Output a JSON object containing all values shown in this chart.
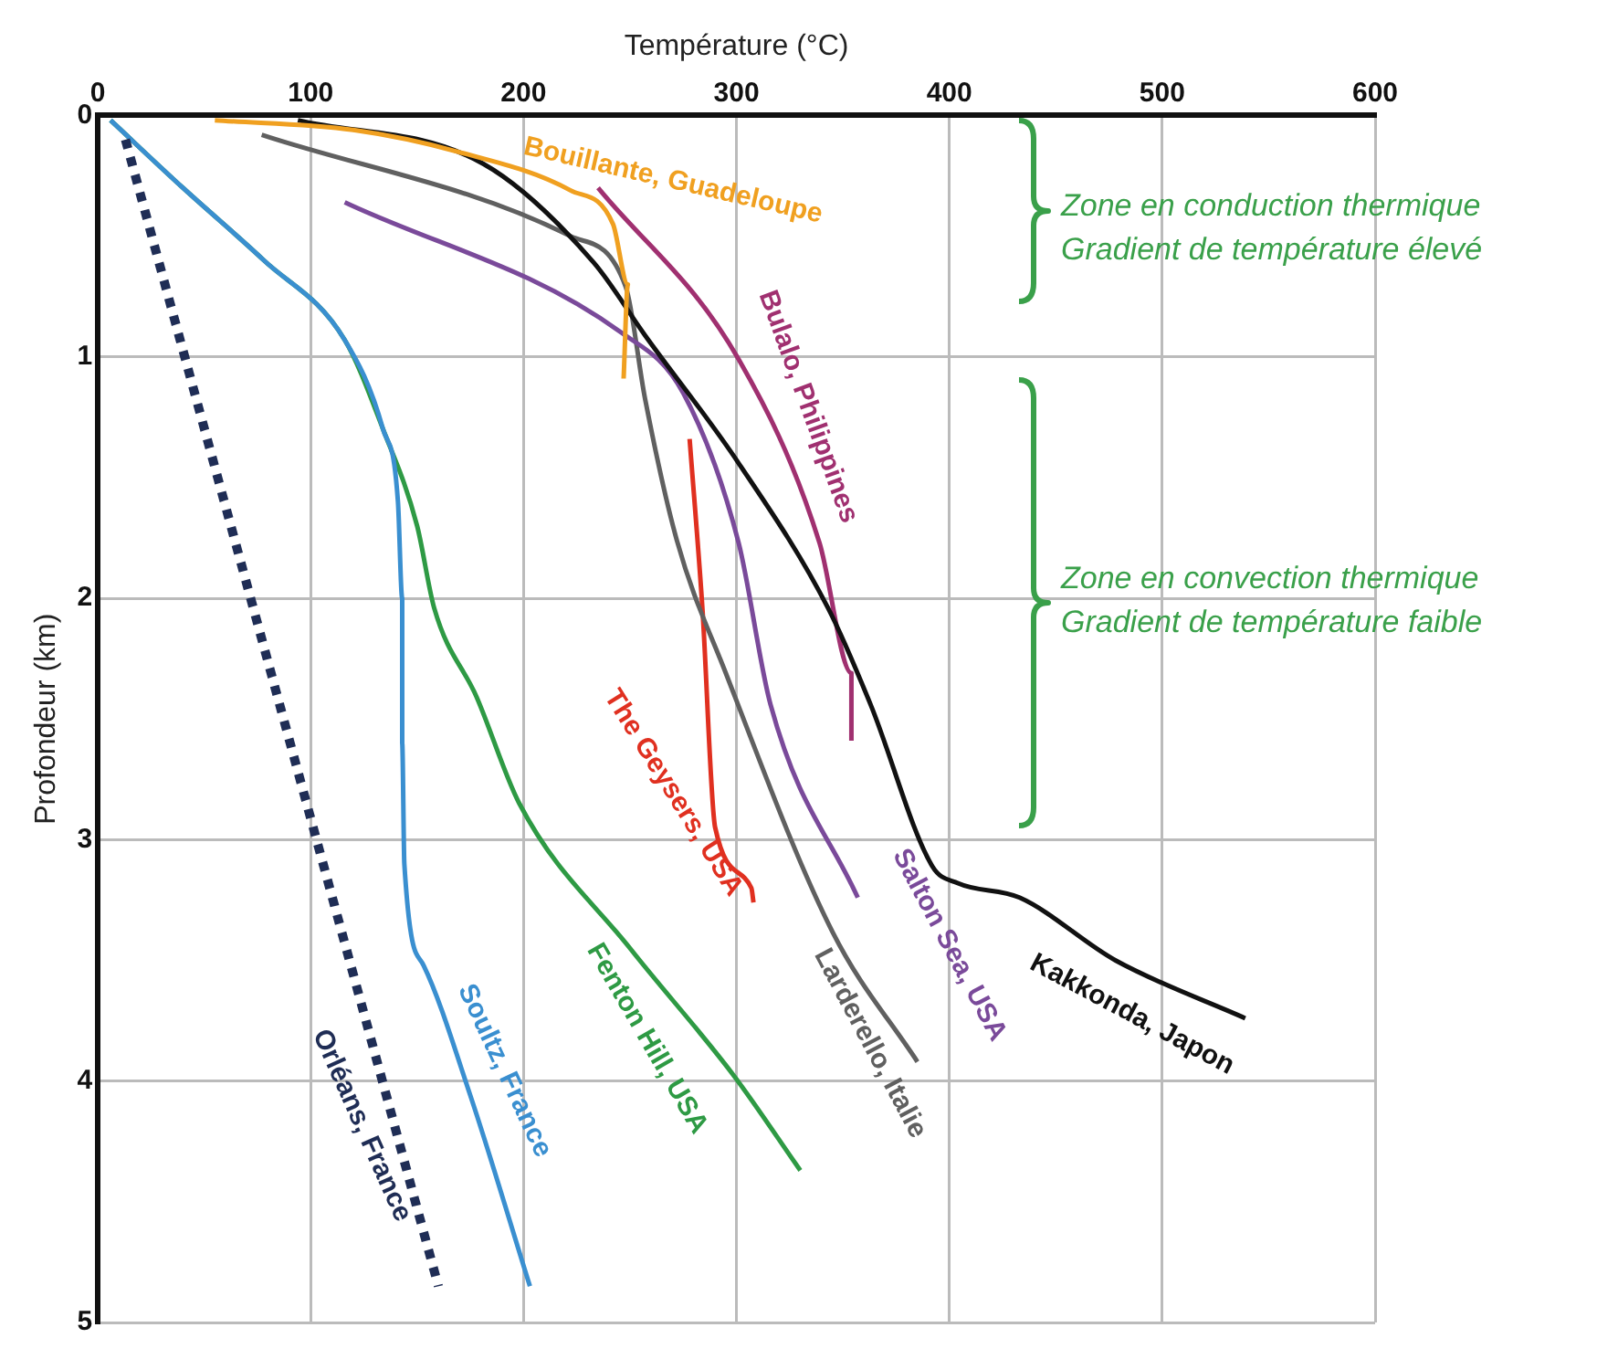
{
  "chart_data": {
    "type": "line",
    "xlabel": "Température (°C)",
    "ylabel": "Profondeur (km)",
    "xlim": [
      0,
      600
    ],
    "ylim": [
      5,
      0
    ],
    "xticks": [
      0,
      100,
      200,
      300,
      400,
      500,
      600
    ],
    "yticks": [
      0,
      1,
      2,
      3,
      4,
      5
    ],
    "grid": true,
    "legend": false,
    "marker": "none",
    "series": [
      {
        "name": "Orléans, France",
        "color": "#1f2d55",
        "line_style": "dotted",
        "x": [
          13,
          160
        ],
        "values": [
          0.1,
          4.85
        ]
      },
      {
        "name": "Soultz, France",
        "color": "#3a8fd0",
        "x": [
          6,
          40,
          78,
          116,
          134,
          141,
          143,
          143,
          144,
          153,
          175,
          203
        ],
        "values": [
          0.02,
          0.3,
          0.6,
          0.93,
          1.3,
          1.6,
          2.0,
          2.6,
          3.1,
          3.52,
          4.06,
          4.85
        ]
      },
      {
        "name": "Fenton Hill, USA",
        "color": "#2e9a44",
        "x": [
          6,
          40,
          78,
          116,
          134,
          150,
          158,
          178,
          198,
          250,
          299,
          330
        ],
        "values": [
          0.02,
          0.3,
          0.6,
          0.93,
          1.3,
          1.7,
          2.04,
          2.41,
          2.85,
          3.45,
          3.98,
          4.37
        ]
      },
      {
        "name": "Bouillante, Guadeloupe",
        "color": "#f0a020",
        "x": [
          55,
          120,
          169,
          222,
          242,
          249,
          247
        ],
        "values": [
          0.02,
          0.06,
          0.15,
          0.31,
          0.45,
          0.7,
          1.09
        ]
      },
      {
        "name": "Kakkonda, Japon",
        "color": "#111111",
        "x": [
          94,
          181,
          233,
          257,
          301,
          343,
          363,
          392,
          404,
          433,
          478,
          539
        ],
        "values": [
          0.02,
          0.2,
          0.61,
          0.91,
          1.44,
          2.04,
          2.44,
          3.11,
          3.18,
          3.24,
          3.5,
          3.74
        ]
      },
      {
        "name": "Bulalo, Philippines",
        "color": "#a03070",
        "x": [
          235,
          301,
          339,
          354,
          354
        ],
        "values": [
          0.3,
          1.01,
          1.77,
          2.31,
          2.59
        ]
      },
      {
        "name": "Salton Sea, USA",
        "color": "#7a4a9a",
        "x": [
          116,
          246,
          275,
          301,
          316,
          357
        ],
        "values": [
          0.36,
          0.9,
          1.15,
          1.77,
          2.44,
          3.24
        ]
      },
      {
        "name": "Larderello, Italie",
        "color": "#606060",
        "x": [
          77,
          222,
          248,
          257,
          272,
          295,
          345,
          385
        ],
        "values": [
          0.08,
          0.5,
          0.71,
          1.17,
          1.76,
          2.31,
          3.38,
          3.92
        ]
      },
      {
        "name": "The Geysers, USA",
        "color": "#e03020",
        "x": [
          278,
          284,
          290,
          307,
          308
        ],
        "values": [
          1.34,
          2.04,
          2.95,
          3.2,
          3.26
        ]
      }
    ],
    "annotations": [
      "Zone en conduction thermique",
      "Gradient de température élevé",
      "Zone en convection thermique",
      "Gradient de température faible"
    ]
  }
}
